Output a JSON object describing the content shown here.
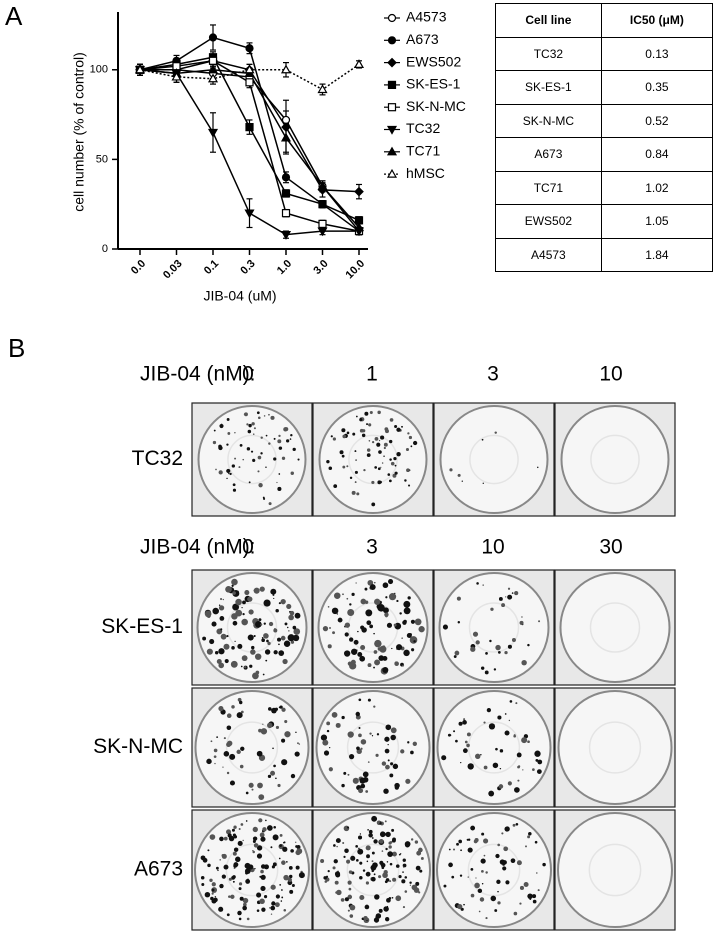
{
  "panel_labels": [
    "A",
    "B"
  ],
  "chart_data": {
    "type": "line",
    "x_label": "JIB-04 (uM)",
    "y_label": "cell number (% of control)",
    "categories": [
      "0.0",
      "0.03",
      "0.1",
      "0.3",
      "1.0",
      "3.0",
      "10.0"
    ],
    "ylim": [
      0,
      130
    ],
    "yticks": [
      0,
      50,
      100
    ],
    "series": [
      {
        "name": "A4573",
        "color": "#000",
        "marker": "circle",
        "filled": false,
        "dashed": false,
        "values": [
          100,
          100,
          98,
          96,
          72,
          35,
          10
        ],
        "errors": [
          3,
          3,
          3,
          3,
          5,
          3,
          2
        ]
      },
      {
        "name": "A673",
        "color": "#000",
        "marker": "circle",
        "filled": true,
        "dashed": false,
        "values": [
          100,
          105,
          118,
          112,
          40,
          25,
          10
        ],
        "errors": [
          3,
          3,
          7,
          3,
          3,
          2,
          2
        ]
      },
      {
        "name": "EWS502",
        "color": "#000",
        "marker": "diamond",
        "filled": true,
        "dashed": false,
        "values": [
          100,
          100,
          105,
          100,
          68,
          33,
          32
        ],
        "errors": [
          3,
          3,
          3,
          3,
          15,
          4,
          4
        ]
      },
      {
        "name": "SK-ES-1",
        "color": "#000",
        "marker": "square",
        "filled": true,
        "dashed": false,
        "values": [
          100,
          103,
          107,
          68,
          31,
          25,
          16
        ],
        "errors": [
          3,
          3,
          3,
          4,
          2,
          2,
          2
        ]
      },
      {
        "name": "SK-N-MC",
        "color": "#000",
        "marker": "square",
        "filled": false,
        "dashed": false,
        "values": [
          100,
          102,
          105,
          93,
          20,
          14,
          10
        ],
        "errors": [
          3,
          3,
          3,
          3,
          2,
          2,
          2
        ]
      },
      {
        "name": "TC32",
        "color": "#000",
        "marker": "triangle-down",
        "filled": true,
        "dashed": false,
        "values": [
          100,
          98,
          65,
          20,
          8,
          10,
          10
        ],
        "errors": [
          3,
          5,
          11,
          8,
          2,
          2,
          2
        ]
      },
      {
        "name": "TC71",
        "color": "#000",
        "marker": "triangle-up",
        "filled": true,
        "dashed": false,
        "values": [
          100,
          98,
          100,
          98,
          62,
          35,
          12
        ],
        "errors": [
          3,
          3,
          3,
          3,
          8,
          3,
          2
        ]
      },
      {
        "name": "hMSC",
        "color": "#000",
        "marker": "triangle-up",
        "filled": false,
        "dashed": true,
        "values": [
          100,
          96,
          95,
          100,
          100,
          89,
          103
        ],
        "errors": [
          3,
          3,
          3,
          3,
          4,
          3,
          2
        ]
      }
    ]
  },
  "table": {
    "header": [
      "Cell line",
      "IC50 (μM)"
    ],
    "rows": [
      [
        "TC32",
        0.13
      ],
      [
        "SK-ES-1",
        0.35
      ],
      [
        "SK-N-MC",
        0.52
      ],
      [
        "A673",
        0.84
      ],
      [
        "TC71",
        1.02
      ],
      [
        "EWS502",
        1.05
      ],
      [
        "A4573",
        1.84
      ]
    ]
  },
  "colony_assay": {
    "groups": [
      {
        "dose_label": "JIB-04 (nM):",
        "doses": [
          0,
          1,
          3,
          10
        ],
        "rows": [
          "TC32"
        ]
      },
      {
        "dose_label": "JIB-04 (nM):",
        "doses": [
          0,
          3,
          10,
          30
        ],
        "rows": [
          "SK-ES-1",
          "SK-N-MC",
          "A673"
        ]
      }
    ]
  }
}
